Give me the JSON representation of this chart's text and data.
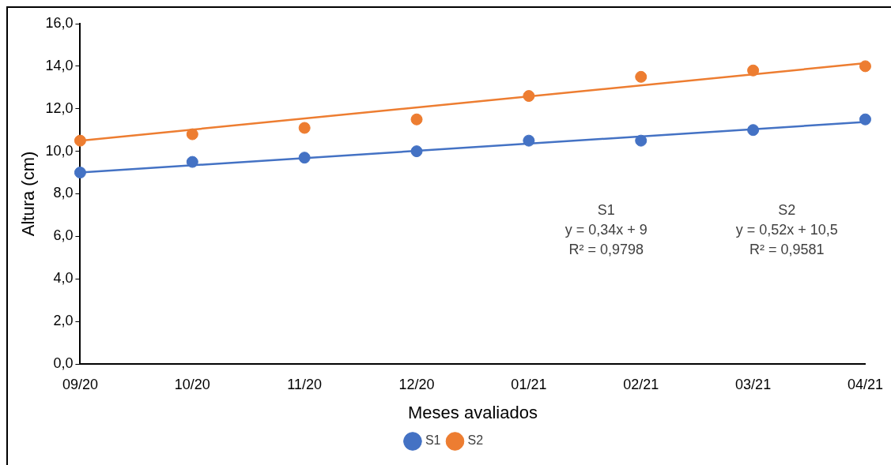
{
  "chart_data": {
    "type": "scatter",
    "xlabel": "Meses avaliados",
    "ylabel": "Altura (cm)",
    "categories": [
      "09/20",
      "10/20",
      "11/20",
      "12/20",
      "01/21",
      "02/21",
      "03/21",
      "04/21"
    ],
    "ylim": [
      0,
      16
    ],
    "yticks": [
      {
        "value": 0,
        "label": "0,0"
      },
      {
        "value": 2,
        "label": "2,0"
      },
      {
        "value": 4,
        "label": "4,0"
      },
      {
        "value": 6,
        "label": "6,0"
      },
      {
        "value": 8,
        "label": "8,0"
      },
      {
        "value": 10,
        "label": "10,0"
      },
      {
        "value": 12,
        "label": "12,0"
      },
      {
        "value": 14,
        "label": "14,0"
      },
      {
        "value": 16,
        "label": "16,0"
      }
    ],
    "grid": false,
    "legend": "bottom",
    "series": [
      {
        "name": "S1",
        "color": "#4472c4",
        "marker": "circle",
        "values": [
          9.0,
          9.5,
          9.7,
          10.0,
          10.5,
          10.5,
          11.0,
          11.5
        ]
      },
      {
        "name": "S2",
        "color": "#ed7d31",
        "marker": "circle",
        "values": [
          10.5,
          10.8,
          11.1,
          11.5,
          12.6,
          13.5,
          13.8,
          14.0
        ]
      },
      {
        "type": "line",
        "color": "#4472c4",
        "x": [
          "09/20",
          "04/21"
        ],
        "values": [
          9.0,
          11.38
        ]
      },
      {
        "type": "line",
        "color": "#ed7d31",
        "x": [
          "09/20",
          "04/21"
        ],
        "values": [
          10.5,
          14.14
        ]
      }
    ],
    "annotations": [
      "S1\ny = 0,34x + 9\nR² = 0,9798",
      "S2\ny = 0,52x + 10,5\nR² = 0,9581"
    ]
  }
}
